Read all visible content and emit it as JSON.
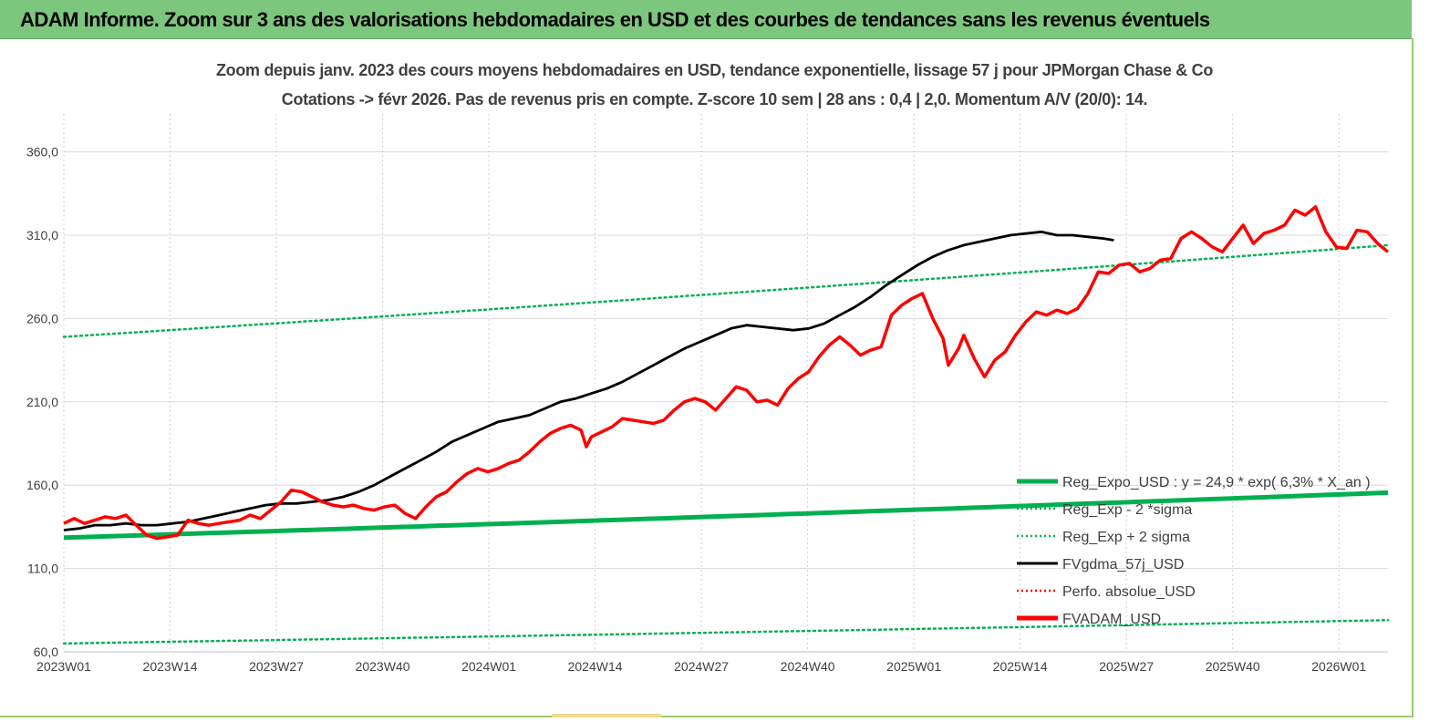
{
  "header": {
    "title": "ADAM Informe. Zoom sur 3 ans des valorisations hebdomadaires en USD et des courbes de tendances sans les revenus éventuels"
  },
  "colors": {
    "header_bg": "#7dc67e",
    "green": "#00b050",
    "red": "#ff0000",
    "black": "#000000",
    "grid": "#d9d9d9"
  },
  "chart_data": {
    "type": "line",
    "title": "Zoom depuis janv. 2023 des cours moyens hebdomadaires en USD, tendance exponentielle, lissage 57 j pour JPMorgan Chase & Co",
    "subtitle": "Cotations -> févr 2026.  Pas de revenus pris en compte. Z-score 10 sem  | 28 ans : 0,4 | 2,0. Momentum A/V (20/0): 14.",
    "x_ticks": [
      "2023W01",
      "2023W14",
      "2023W27",
      "2023W40",
      "2024W01",
      "2024W14",
      "2024W27",
      "2024W40",
      "2025W01",
      "2025W14",
      "2025W27",
      "2025W40",
      "2026W01"
    ],
    "y_ticks": [
      "60,0",
      "110,0",
      "160,0",
      "210,0",
      "260,0",
      "310,0",
      "360,0"
    ],
    "ylim": [
      60,
      380
    ],
    "legend_position": "bottom-right",
    "series": [
      {
        "name": "Reg_Expo_USD : y = 24,9 * exp( 6,3% *  X_an )",
        "style": "solid-thick",
        "color": "#00b050",
        "start": 128.5,
        "end": 155.5
      },
      {
        "name": "Reg_Exp - 2 *sigma",
        "style": "dotted",
        "color": "#00b050",
        "start": 65.0,
        "end": 79.0
      },
      {
        "name": "Reg_Exp + 2 sigma",
        "style": "dotted",
        "color": "#00b050",
        "start": 249.0,
        "end": 304.0
      },
      {
        "name": "FVgdma_57j_USD",
        "style": "solid",
        "color": "#000000",
        "points": [
          [
            0,
            133
          ],
          [
            3,
            134
          ],
          [
            6,
            136
          ],
          [
            9,
            136
          ],
          [
            12,
            137
          ],
          [
            15,
            136
          ],
          [
            18,
            136
          ],
          [
            21,
            137
          ],
          [
            24,
            138
          ],
          [
            27,
            140
          ],
          [
            30,
            142
          ],
          [
            33,
            144
          ],
          [
            36,
            146
          ],
          [
            39,
            148
          ],
          [
            42,
            149
          ],
          [
            45,
            149
          ],
          [
            48,
            150
          ],
          [
            51,
            151
          ],
          [
            54,
            153
          ],
          [
            57,
            156
          ],
          [
            60,
            160
          ],
          [
            63,
            165
          ],
          [
            66,
            170
          ],
          [
            69,
            175
          ],
          [
            72,
            180
          ],
          [
            75,
            186
          ],
          [
            78,
            190
          ],
          [
            81,
            194
          ],
          [
            84,
            198
          ],
          [
            87,
            200
          ],
          [
            90,
            202
          ],
          [
            93,
            206
          ],
          [
            96,
            210
          ],
          [
            99,
            212
          ],
          [
            102,
            215
          ],
          [
            105,
            218
          ],
          [
            108,
            222
          ],
          [
            111,
            227
          ],
          [
            114,
            232
          ],
          [
            117,
            237
          ],
          [
            120,
            242
          ],
          [
            123,
            246
          ],
          [
            126,
            250
          ],
          [
            129,
            254
          ],
          [
            132,
            256
          ],
          [
            135,
            255
          ],
          [
            138,
            254
          ],
          [
            141,
            253
          ],
          [
            144,
            254
          ],
          [
            147,
            257
          ],
          [
            150,
            262
          ],
          [
            153,
            267
          ],
          [
            156,
            273
          ],
          [
            159,
            280
          ],
          [
            162,
            286
          ],
          [
            165,
            292
          ],
          [
            168,
            297
          ],
          [
            171,
            301
          ],
          [
            174,
            304
          ],
          [
            177,
            306
          ],
          [
            180,
            308
          ],
          [
            183,
            310
          ],
          [
            186,
            311
          ],
          [
            189,
            312
          ],
          [
            192,
            310
          ],
          [
            195,
            310
          ],
          [
            198,
            309
          ],
          [
            201,
            308
          ],
          [
            203,
            307
          ]
        ]
      },
      {
        "name": "Perfo. absolue_USD",
        "style": "dotted",
        "color": "#ff0000"
      },
      {
        "name": "FVADAM_USD",
        "style": "solid-thick",
        "color": "#ff0000",
        "points": [
          [
            0,
            137
          ],
          [
            2,
            140
          ],
          [
            4,
            137
          ],
          [
            6,
            139
          ],
          [
            8,
            141
          ],
          [
            10,
            140
          ],
          [
            12,
            142
          ],
          [
            14,
            136
          ],
          [
            16,
            130
          ],
          [
            18,
            128
          ],
          [
            20,
            129
          ],
          [
            22,
            130
          ],
          [
            24,
            139
          ],
          [
            26,
            137
          ],
          [
            28,
            136
          ],
          [
            30,
            137
          ],
          [
            32,
            138
          ],
          [
            34,
            139
          ],
          [
            36,
            142
          ],
          [
            38,
            140
          ],
          [
            40,
            145
          ],
          [
            42,
            150
          ],
          [
            44,
            157
          ],
          [
            46,
            156
          ],
          [
            48,
            153
          ],
          [
            50,
            150
          ],
          [
            52,
            148
          ],
          [
            54,
            147
          ],
          [
            56,
            148
          ],
          [
            58,
            146
          ],
          [
            60,
            145
          ],
          [
            62,
            147
          ],
          [
            64,
            148
          ],
          [
            66,
            143
          ],
          [
            68,
            140
          ],
          [
            70,
            147
          ],
          [
            72,
            153
          ],
          [
            74,
            156
          ],
          [
            76,
            162
          ],
          [
            78,
            167
          ],
          [
            80,
            170
          ],
          [
            82,
            168
          ],
          [
            84,
            170
          ],
          [
            86,
            173
          ],
          [
            88,
            175
          ],
          [
            90,
            180
          ],
          [
            92,
            186
          ],
          [
            94,
            191
          ],
          [
            96,
            194
          ],
          [
            98,
            196
          ],
          [
            100,
            193
          ],
          [
            101,
            183
          ],
          [
            102,
            189
          ],
          [
            104,
            192
          ],
          [
            106,
            195
          ],
          [
            108,
            200
          ],
          [
            110,
            199
          ],
          [
            112,
            198
          ],
          [
            114,
            197
          ],
          [
            116,
            199
          ],
          [
            118,
            205
          ],
          [
            120,
            210
          ],
          [
            122,
            212
          ],
          [
            124,
            210
          ],
          [
            126,
            205
          ],
          [
            128,
            212
          ],
          [
            130,
            219
          ],
          [
            132,
            217
          ],
          [
            134,
            210
          ],
          [
            136,
            211
          ],
          [
            138,
            208
          ],
          [
            140,
            218
          ],
          [
            142,
            224
          ],
          [
            144,
            228
          ],
          [
            146,
            237
          ],
          [
            148,
            244
          ],
          [
            150,
            249
          ],
          [
            152,
            244
          ],
          [
            154,
            238
          ],
          [
            156,
            241
          ],
          [
            158,
            243
          ],
          [
            160,
            262
          ],
          [
            162,
            268
          ],
          [
            164,
            272
          ],
          [
            166,
            275
          ],
          [
            168,
            260
          ],
          [
            170,
            248
          ],
          [
            171,
            232
          ],
          [
            173,
            242
          ],
          [
            174,
            250
          ],
          [
            176,
            236
          ],
          [
            178,
            225
          ],
          [
            180,
            235
          ],
          [
            182,
            240
          ],
          [
            184,
            250
          ],
          [
            186,
            258
          ],
          [
            188,
            264
          ],
          [
            190,
            262
          ],
          [
            192,
            265
          ],
          [
            194,
            263
          ],
          [
            196,
            266
          ],
          [
            198,
            275
          ],
          [
            200,
            288
          ],
          [
            202,
            287
          ],
          [
            204,
            292
          ],
          [
            206,
            293
          ],
          [
            208,
            288
          ],
          [
            210,
            290
          ],
          [
            212,
            295
          ],
          [
            214,
            296
          ],
          [
            216,
            308
          ],
          [
            218,
            312
          ],
          [
            220,
            308
          ],
          [
            222,
            303
          ],
          [
            224,
            300
          ],
          [
            226,
            308
          ],
          [
            228,
            316
          ],
          [
            230,
            305
          ],
          [
            232,
            311
          ],
          [
            234,
            313
          ],
          [
            236,
            316
          ],
          [
            238,
            325
          ],
          [
            240,
            322
          ],
          [
            242,
            327
          ],
          [
            244,
            312
          ],
          [
            246,
            303
          ],
          [
            248,
            302
          ],
          [
            250,
            313
          ],
          [
            252,
            312
          ],
          [
            254,
            305
          ],
          [
            256,
            300
          ]
        ]
      }
    ]
  }
}
